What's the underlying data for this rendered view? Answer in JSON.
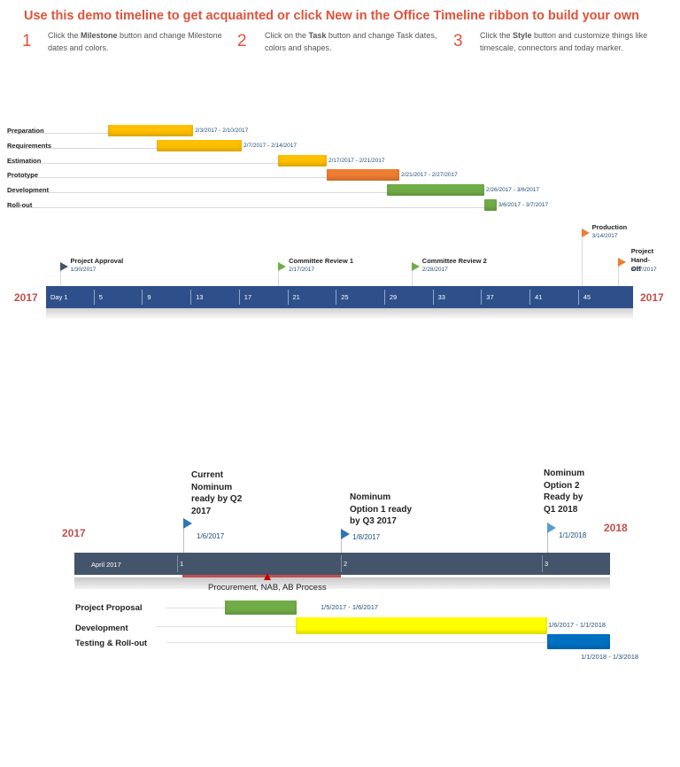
{
  "header": {
    "headline": "Use this demo timeline to get acquainted or click New in the Office Timeline ribbon to build your own",
    "steps": [
      {
        "num": "1",
        "pre": "Click the ",
        "bold": "Milestone",
        "post": " button and change Milestone dates and colors."
      },
      {
        "num": "2",
        "pre": "Click on the ",
        "bold": "Task",
        "post": " button and change Task dates, colors and shapes."
      },
      {
        "num": "3",
        "pre": "Click the ",
        "bold": "Style",
        "post": " button and customize things like timescale, connectors and today marker."
      }
    ]
  },
  "colors": {
    "accent": "#e0523a",
    "year": "#c0504d",
    "axis1": "#2e4f8a",
    "axis2": "#44546a",
    "date_text": "#1f4e79"
  },
  "chart_data": [
    {
      "type": "gantt",
      "timeline_year_left": "2017",
      "timeline_year_right": "2017",
      "axis_start_label": "Day 1",
      "axis_ticks": [
        "Day 1",
        "5",
        "9",
        "13",
        "17",
        "21",
        "25",
        "29",
        "33",
        "37",
        "41",
        "45"
      ],
      "tasks": [
        {
          "name": "Preparation",
          "start": "2017-02-03",
          "end": "2017-02-10",
          "date_label": "2/3/2017 - 2/10/2017",
          "color": "#ffc000"
        },
        {
          "name": "Requirements",
          "start": "2017-02-07",
          "end": "2017-02-14",
          "date_label": "2/7/2017 - 2/14/2017",
          "color": "#ffc000"
        },
        {
          "name": "Estimation",
          "start": "2017-02-17",
          "end": "2017-02-21",
          "date_label": "2/17/2017 - 2/21/2017",
          "color": "#ffc000"
        },
        {
          "name": "Prototype",
          "start": "2017-02-21",
          "end": "2017-02-27",
          "date_label": "2/21/2017 - 2/27/2017",
          "color": "#ed7d31"
        },
        {
          "name": "Development",
          "start": "2017-02-26",
          "end": "2017-03-06",
          "date_label": "2/26/2017 - 3/6/2017",
          "color": "#70ad47"
        },
        {
          "name": "Roll-out",
          "start": "2017-03-06",
          "end": "2017-03-07",
          "date_label": "3/6/2017 - 3/7/2017",
          "color": "#70ad47"
        }
      ],
      "milestones": [
        {
          "name": "Project Approval",
          "date": "2017-01-30",
          "date_label": "1/30/2017",
          "color": "#44546a"
        },
        {
          "name": "Committee Review 1",
          "date": "2017-02-17",
          "date_label": "2/17/2017",
          "color": "#70ad47"
        },
        {
          "name": "Committee Review 2",
          "date": "2017-02-28",
          "date_label": "2/28/2017",
          "color": "#70ad47"
        },
        {
          "name": "Production",
          "date": "2017-03-14",
          "date_label": "3/14/2017",
          "color": "#ed7d31"
        },
        {
          "name": "Project Hand-Off",
          "date": "2017-03-17",
          "date_label": "3/17/2017",
          "color": "#ed7d31"
        }
      ]
    },
    {
      "type": "gantt",
      "timeline_year_left": "2017",
      "timeline_year_right": "2018",
      "axis_start_label": "April 2017",
      "axis_ticks": [
        "1",
        "2",
        "3"
      ],
      "phase": {
        "label": "Procurement, NAB, AB Process"
      },
      "tasks": [
        {
          "name": "Project Proposal",
          "start": "2017-01-05",
          "end": "2017-01-06",
          "date_label": "1/5/2017 - 1/6/2017",
          "color": "#70ad47"
        },
        {
          "name": "Development",
          "start": "2017-01-06",
          "end": "2018-01-01",
          "date_label": "1/6/2017 - 1/1/2018",
          "color": "#ffff00"
        },
        {
          "name": "Testing & Roll-out",
          "start": "2018-01-01",
          "end": "2018-01-03",
          "date_label": "1/1/2018 - 1/3/2018",
          "color": "#0070c0"
        }
      ],
      "milestones": [
        {
          "name": "Current Nominum ready by Q2 2017",
          "date": "2017-01-06",
          "date_label": "1/6/2017",
          "color": "#2e75b6"
        },
        {
          "name": "Nominum Option 1 ready by Q3 2017",
          "date": "2017-01-08",
          "date_label": "1/8/2017",
          "color": "#2e75b6"
        },
        {
          "name": "Nominum Option 2 Ready by Q1 2018",
          "date": "2018-01-01",
          "date_label": "1/1/2018",
          "color": "#5b9bd5"
        }
      ]
    }
  ]
}
